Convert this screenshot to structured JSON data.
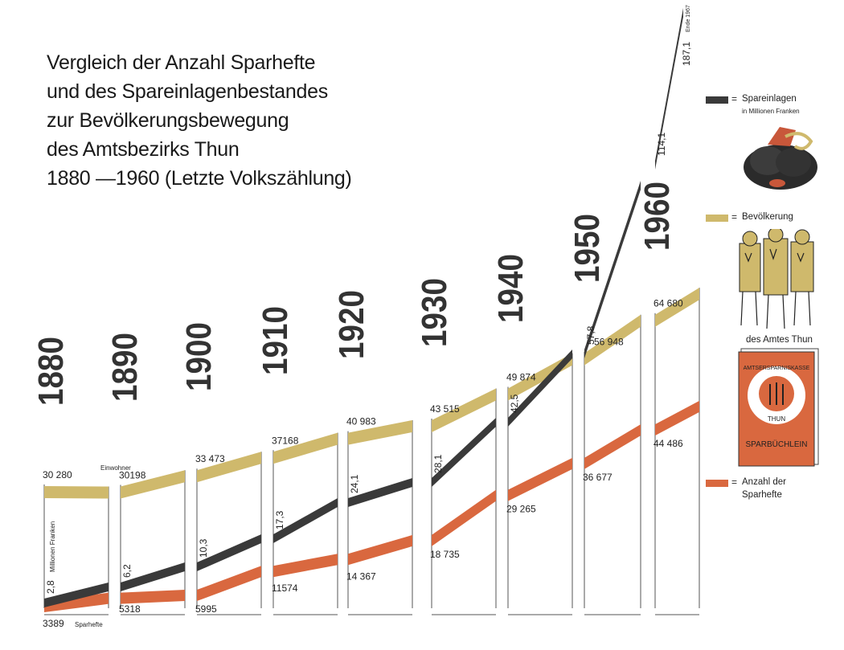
{
  "title": {
    "lines": [
      "Vergleich der Anzahl Sparhefte",
      "und des Spareinlagenbestandes",
      "zur Bevölkerungsbewegung",
      "des Amtsbezirks Thun",
      "1880 —1960 (Letzte Volkszählung)"
    ]
  },
  "colors": {
    "population": "#cfb96c",
    "savings": "#3a3a3a",
    "booklets": "#d9683f"
  },
  "chart_data": {
    "type": "area",
    "title": "Vergleich der Anzahl Sparhefte und des Spareinlagenbestandes zur Bevölkerungsbewegung des Amtsbezirks Thun 1880 —1960 (Letzte Volkszählung)",
    "categories": [
      "1880",
      "1890",
      "1900",
      "1910",
      "1920",
      "1930",
      "1940",
      "1950",
      "1960"
    ],
    "series": [
      {
        "name": "Bevölkerung",
        "unit": "Einwohner",
        "values": [
          30280,
          30198,
          33473,
          37168,
          40983,
          43515,
          49874,
          56948,
          64680
        ],
        "labels": [
          "30 280",
          "30198",
          "33 473",
          "37168",
          "40 983",
          "43 515",
          "49 874",
          "56 948",
          "64 680"
        ]
      },
      {
        "name": "Spareinlagen",
        "unit": "Millionen Franken",
        "values": [
          2.8,
          6.2,
          10.3,
          17.3,
          24.1,
          28.1,
          42.5,
          57.8,
          114.1
        ],
        "labels": [
          "2,8",
          "6,2",
          "10,3",
          "17,3",
          "24,1",
          "28,1",
          "42,5",
          "57,8",
          "114,1"
        ],
        "extra": {
          "value": 187.1,
          "label": "187,1",
          "note": "Ende 1967"
        }
      },
      {
        "name": "Anzahl der Sparhefte",
        "unit": "Sparhefte",
        "values": [
          3389,
          5318,
          5995,
          11574,
          14367,
          18735,
          29265,
          36677,
          44486
        ],
        "labels": [
          "3389",
          "5318",
          "5995",
          "11574",
          "14 367",
          "18 735",
          "29 265",
          "36 677",
          "44 486"
        ]
      }
    ],
    "unit_labels": {
      "population": "Einwohner",
      "savings": "Millionen Franken",
      "booklets": "Sparhefte"
    }
  },
  "legend": {
    "savings": {
      "label": "Spareinlagen",
      "sub": "in Millionen Franken"
    },
    "population": {
      "label": "Bevölkerung",
      "caption": "des Amtes Thun"
    },
    "booklets": {
      "label": "Anzahl der",
      "label2": "Sparhefte"
    },
    "eq": "="
  },
  "booklet_image": {
    "ring_text": "AMTSERSPARNISKASSE",
    "city": "THUN",
    "title": "SPARBÜCHLEIN"
  }
}
